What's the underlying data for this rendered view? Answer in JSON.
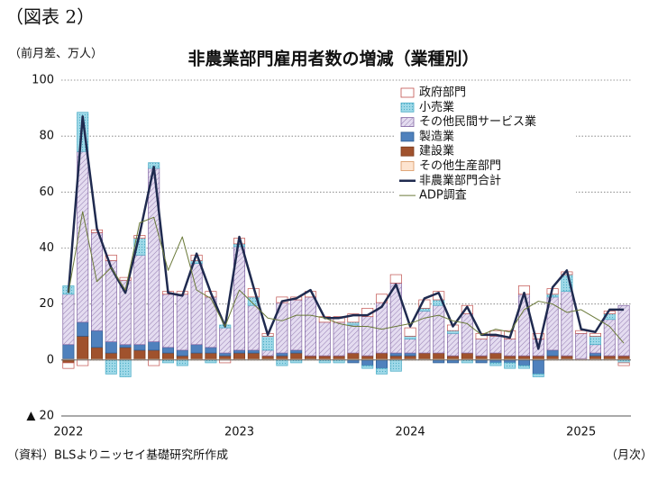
{
  "figure_label": "（図表 2）",
  "chart_data": {
    "type": "stacked-bar-line",
    "title": "非農業部門雇用者数の増減（業種別）",
    "y_unit_label": "（前月差、万人）",
    "x_unit_label": "（月次）",
    "source": "（資料）BLSよりニッセイ基礎研究所作成",
    "categories": [
      "2022",
      null,
      null,
      null,
      null,
      null,
      null,
      null,
      null,
      null,
      null,
      null,
      "2023",
      null,
      null,
      null,
      null,
      null,
      null,
      null,
      null,
      null,
      null,
      null,
      "2024",
      null,
      null,
      null,
      null,
      null,
      null,
      null,
      null,
      null,
      null,
      null,
      "2025",
      null,
      null,
      null
    ],
    "ylim": [
      -20,
      100
    ],
    "yticks": [
      {
        "value": -20,
        "label": "▲ 20"
      },
      0,
      20,
      40,
      60,
      80,
      100
    ],
    "grid": true,
    "series": [
      {
        "name": "政府部門",
        "kind": "bar",
        "color": "#ffffff",
        "edge": "#c0504d",
        "values": [
          -2,
          -2,
          1,
          2,
          1,
          1,
          -2,
          1,
          1,
          2,
          2,
          -1,
          2,
          3,
          1,
          2,
          1,
          2,
          2,
          2,
          3,
          3,
          3,
          3,
          3,
          3,
          3,
          2,
          3,
          2,
          2,
          3,
          3,
          2,
          2,
          1,
          1,
          1,
          1,
          -1
        ]
      },
      {
        "name": "小売業",
        "kind": "bar",
        "color": "#9fd9e8",
        "edge": "#4bacc6",
        "values": [
          3,
          14,
          0,
          -5,
          -6,
          6,
          2,
          -1,
          -2,
          1,
          -1,
          1,
          1,
          3,
          5,
          -2,
          -1,
          0,
          -1,
          -1,
          1,
          -1,
          -2,
          -4,
          1,
          1,
          2,
          1,
          -1,
          0,
          -1,
          -2,
          -1,
          -1,
          1,
          6,
          0,
          3,
          2,
          -1
        ]
      },
      {
        "name": "その他民間サービス業",
        "kind": "bar",
        "color": "#e4dcf0",
        "edge": "#8064a2",
        "values": [
          18,
          61,
          35,
          29,
          23,
          32,
          62,
          19,
          20,
          29,
          18,
          9,
          37,
          16,
          2,
          18,
          18,
          21,
          12,
          12,
          10,
          14,
          18,
          25,
          5,
          15,
          17,
          8,
          14,
          6,
          6,
          6,
          22,
          6,
          19,
          23,
          9,
          3,
          13,
          18
        ]
      },
      {
        "name": "製造業",
        "kind": "bar",
        "color": "#4f81bd",
        "edge": "#2c5a8f",
        "values": [
          5,
          5,
          6,
          4,
          1,
          2,
          3,
          2,
          2,
          3,
          2,
          1,
          1,
          1,
          0,
          1,
          1,
          0,
          0,
          0,
          -1,
          -2,
          -3,
          1,
          1,
          0,
          -1,
          -1,
          0,
          -1,
          -1,
          -1,
          -2,
          -5,
          2,
          0,
          0,
          1,
          0,
          0
        ]
      },
      {
        "name": "建設業",
        "kind": "bar",
        "color": "#a0522d",
        "edge": "#7a3b1c",
        "values": [
          -1,
          8,
          4,
          2,
          4,
          3,
          3,
          2,
          1,
          2,
          2,
          1,
          2,
          2,
          1,
          1,
          2,
          1,
          1,
          1,
          2,
          1,
          2,
          1,
          1,
          2,
          2,
          1,
          2,
          1,
          2,
          1,
          1,
          1,
          1,
          1,
          0,
          1,
          1,
          1
        ]
      },
      {
        "name": "その他生産部門",
        "kind": "bar",
        "color": "#fde4d0",
        "edge": "#d99560",
        "values": [
          0.5,
          0.5,
          0.5,
          0.5,
          0.5,
          0.5,
          0.5,
          0.5,
          0.5,
          0.5,
          0.5,
          0.5,
          0.5,
          0.5,
          0.5,
          0.5,
          0.5,
          0.5,
          0.5,
          0.5,
          0.5,
          0.5,
          0.5,
          0.5,
          0.5,
          0.5,
          0.5,
          0.5,
          0.5,
          0.5,
          0.5,
          0.5,
          0.5,
          0.5,
          0.5,
          0.5,
          0.5,
          0.5,
          0.5,
          0.5
        ]
      },
      {
        "name": "非農業部門合計",
        "kind": "line",
        "color": "#1f2a4f",
        "width": 2.5,
        "values": [
          24,
          87,
          47,
          33,
          24,
          45,
          69,
          24,
          23,
          38,
          24,
          12,
          44,
          26,
          9,
          21,
          22,
          25,
          15,
          15,
          16,
          16,
          19,
          27,
          12,
          22,
          24,
          12,
          19,
          9,
          9,
          8,
          24,
          4,
          26,
          32,
          11,
          10,
          18,
          18
        ]
      },
      {
        "name": "ADP調査",
        "kind": "line",
        "color": "#6b7a3a",
        "width": 1,
        "values": [
          24,
          53,
          28,
          33,
          25,
          49,
          51,
          32,
          44,
          25,
          22,
          12,
          25,
          20,
          15,
          14,
          16,
          16,
          15,
          13,
          12,
          12,
          11,
          12,
          13,
          15,
          16,
          14,
          13,
          9,
          11,
          10,
          18,
          21,
          20,
          17,
          18,
          15,
          12,
          6
        ]
      }
    ]
  }
}
